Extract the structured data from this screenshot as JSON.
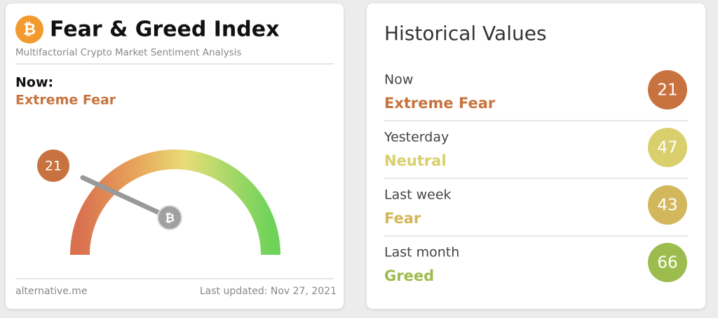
{
  "left_card": {
    "title": "Fear & Greed Index",
    "subtitle": "Multifactorial Crypto Market Sentiment Analysis",
    "now_label": "Now:",
    "classification": "Extreme Fear",
    "value": 21,
    "color": "#c8733f",
    "footer_source": "alternative.me",
    "footer_updated": "Last updated: Nov 27, 2021"
  },
  "right_card": {
    "title": "Historical Values",
    "items": [
      {
        "period": "Now",
        "classification": "Extreme Fear",
        "value": 21,
        "color": "#c8733f"
      },
      {
        "period": "Yesterday",
        "classification": "Neutral",
        "value": 47,
        "color": "#d9cf6c"
      },
      {
        "period": "Last week",
        "classification": "Fear",
        "value": 43,
        "color": "#d3b75c"
      },
      {
        "period": "Last month",
        "classification": "Greed",
        "value": 66,
        "color": "#9dbc4e"
      }
    ]
  }
}
